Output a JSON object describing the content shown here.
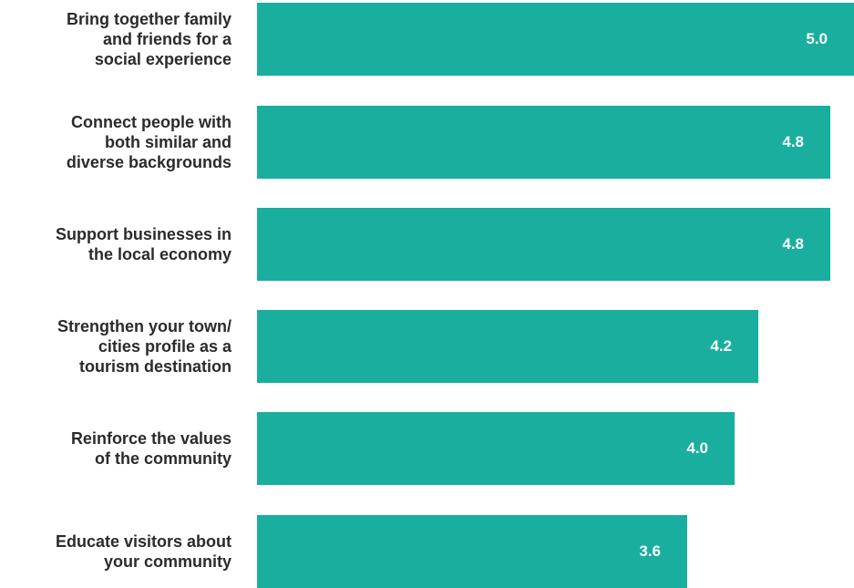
{
  "chart_data": {
    "type": "bar",
    "orientation": "horizontal",
    "categories": [
      "Bring together family\nand friends for a\nsocial experience",
      "Connect people with\nboth similar and\ndiverse backgrounds",
      "Support businesses in\nthe local economy",
      "Strengthen your town/\ncities profile as a\ntourism destination",
      "Reinforce the values\nof the community",
      "Educate visitors about\nyour community"
    ],
    "values": [
      5.0,
      4.8,
      4.8,
      4.2,
      4.0,
      3.6
    ],
    "value_labels": [
      "5.0",
      "4.8",
      "4.8",
      "4.2",
      "4.0",
      "3.6"
    ],
    "title": "",
    "xlabel": "",
    "ylabel": "",
    "xlim": [
      0,
      5.0
    ],
    "grid": false,
    "legend": "none",
    "bar_color": "#1aae9f",
    "label_color": "#2b2b2b",
    "value_label_color": "#ffffff"
  }
}
